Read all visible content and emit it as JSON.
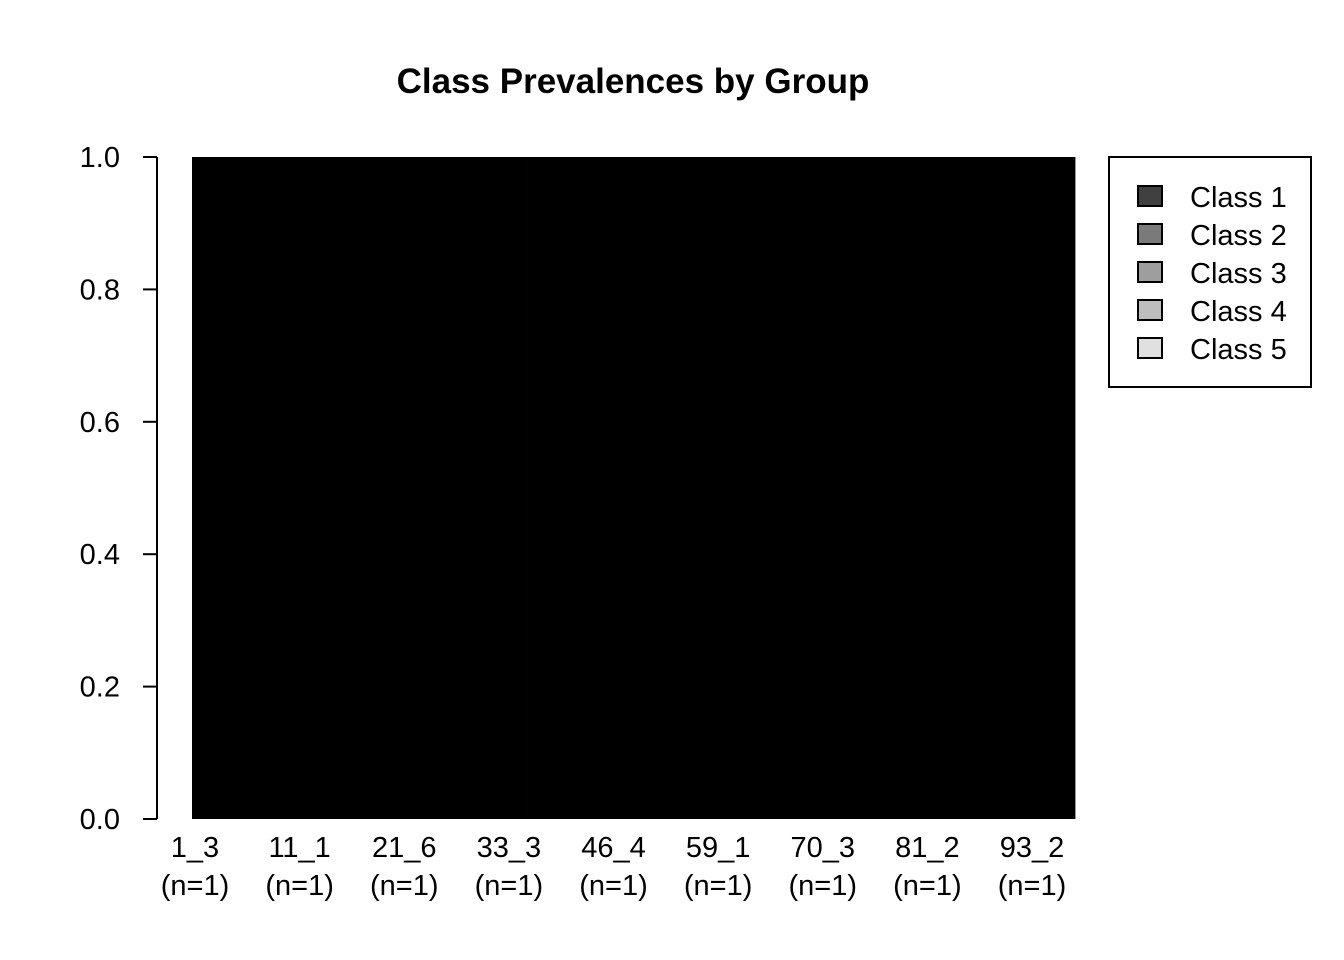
{
  "chart_data": {
    "type": "bar",
    "stacked": true,
    "title": "Class Prevalences by Group",
    "xlabel": "",
    "ylabel": "",
    "ylim": [
      0,
      1
    ],
    "yticks": [
      "0.0",
      "0.2",
      "0.4",
      "0.6",
      "0.8",
      "1.0"
    ],
    "tick_labels": [
      {
        "group": "1_3",
        "n": "(n=1)"
      },
      {
        "group": "11_1",
        "n": "(n=1)"
      },
      {
        "group": "21_6",
        "n": "(n=1)"
      },
      {
        "group": "33_3",
        "n": "(n=1)"
      },
      {
        "group": "46_4",
        "n": "(n=1)"
      },
      {
        "group": "59_1",
        "n": "(n=1)"
      },
      {
        "group": "70_3",
        "n": "(n=1)"
      },
      {
        "group": "81_2",
        "n": "(n=1)"
      },
      {
        "group": "93_2",
        "n": "(n=1)"
      }
    ],
    "bar_count": 100,
    "bar_fill": "#000000",
    "total_per_bar": 1.0,
    "legend": {
      "placement": "top-right",
      "entries": [
        {
          "name": "Class 1",
          "color": "#404040"
        },
        {
          "name": "Class 2",
          "color": "#7a7a7a"
        },
        {
          "name": "Class 3",
          "color": "#9e9e9e"
        },
        {
          "name": "Class 4",
          "color": "#bebebe"
        },
        {
          "name": "Class 5",
          "color": "#e0e0e0"
        }
      ]
    },
    "grid": false
  }
}
